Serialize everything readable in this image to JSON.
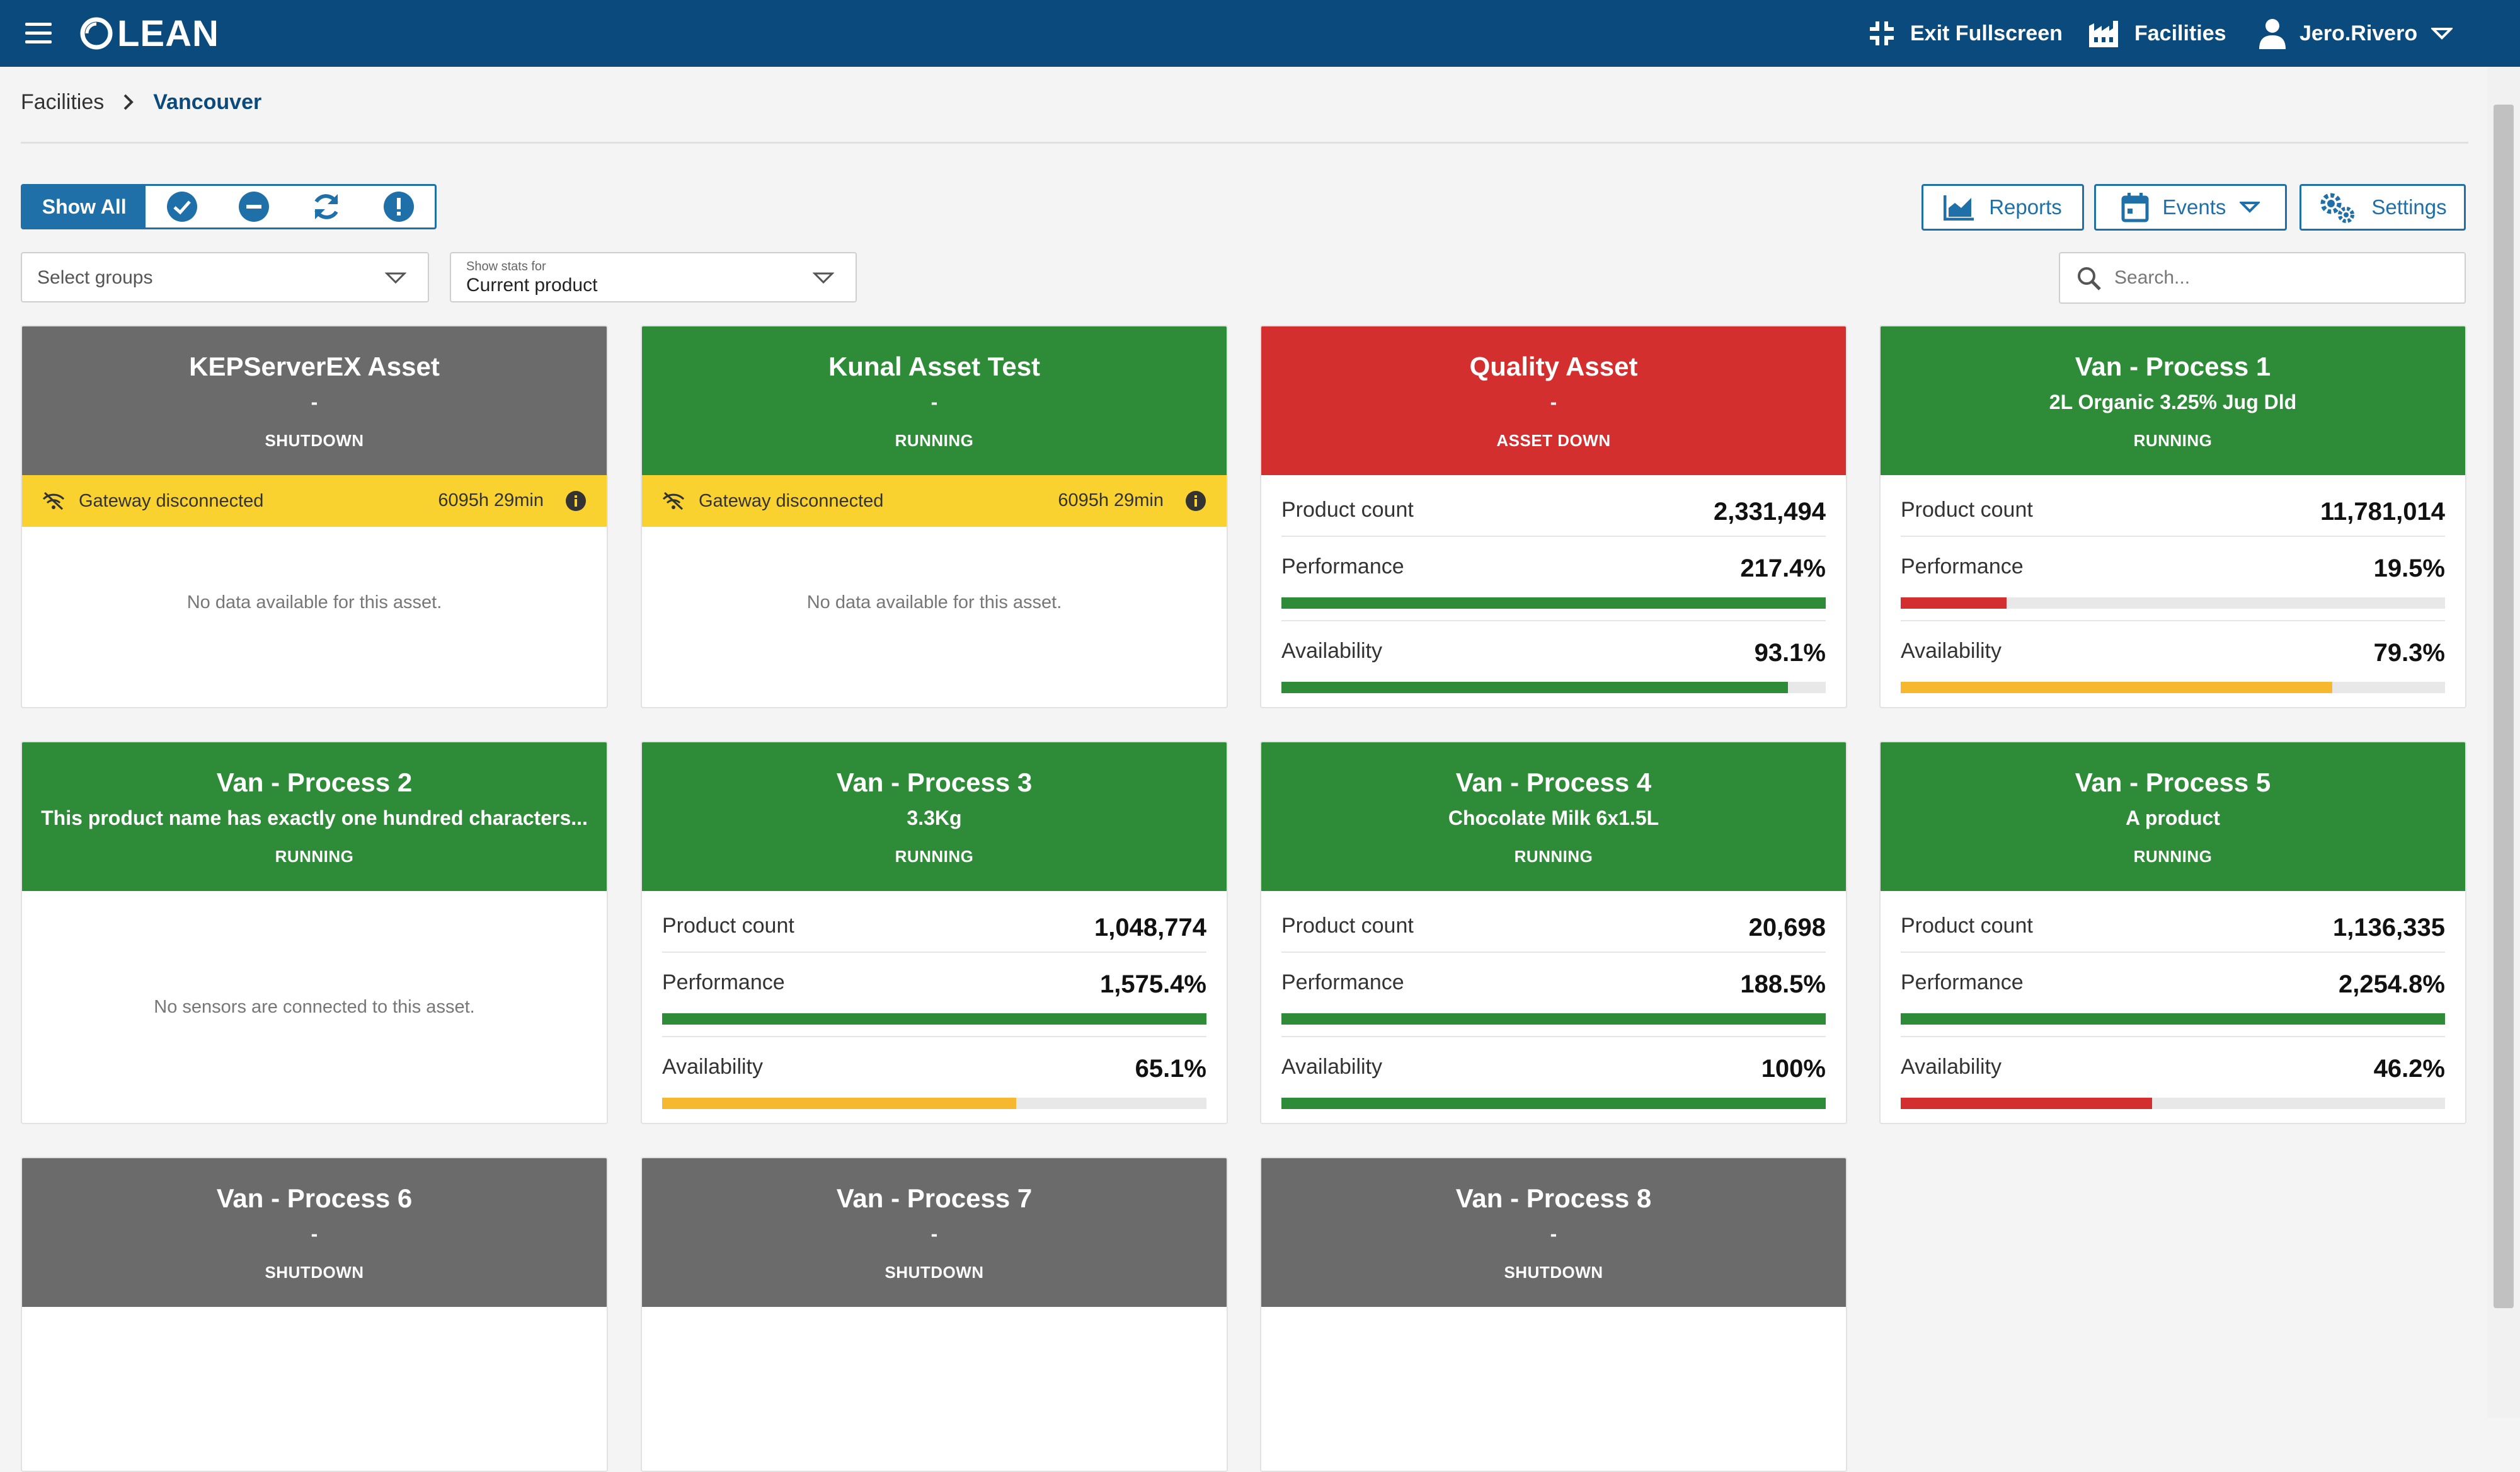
{
  "app": {
    "logo_text": "LEAN",
    "colors": {
      "header": "#0b4a7c",
      "accent": "#1f6fa8",
      "green": "#2e8b38",
      "red": "#d32f2f",
      "gray": "#6b6b6b",
      "yellow": "#f9d22f",
      "orange": "#f5b82e"
    }
  },
  "header": {
    "menu_icon": "hamburger-icon",
    "exit_fullscreen": "Exit Fullscreen",
    "facilities": "Facilities",
    "user": "Jero.Rivero"
  },
  "breadcrumb": {
    "root": "Facilities",
    "current": "Vancouver"
  },
  "toolbar": {
    "show_all": "Show All",
    "filter_icons": [
      "check-circle-icon",
      "minus-circle-icon",
      "refresh-icon",
      "alert-circle-icon"
    ],
    "reports": "Reports",
    "events": "Events",
    "settings": "Settings",
    "groups_placeholder": "Select groups",
    "stats_label": "Show stats for",
    "stats_value": "Current product",
    "search_placeholder": "Search..."
  },
  "labels": {
    "product_count": "Product count",
    "performance": "Performance",
    "availability": "Availability"
  },
  "cards": [
    {
      "title": "KEPServerEX Asset",
      "subtitle": "-",
      "status": "SHUTDOWN",
      "warning": "Gateway disconnected",
      "warning_time": "6095h 29min",
      "message": "No data available for this asset."
    },
    {
      "title": "Kunal Asset Test",
      "subtitle": "-",
      "status": "RUNNING",
      "warning": "Gateway disconnected",
      "warning_time": "6095h 29min",
      "message": "No data available for this asset."
    },
    {
      "title": "Quality Asset",
      "subtitle": "-",
      "status": "ASSET DOWN",
      "product_count": "2,331,494",
      "performance": "217.4%",
      "performance_fill": 100,
      "availability": "93.1%",
      "availability_fill": 93.1
    },
    {
      "title": "Van - Process 1",
      "subtitle": "2L Organic 3.25% Jug Dld",
      "status": "RUNNING",
      "product_count": "11,781,014",
      "performance": "19.5%",
      "performance_fill": 19.5,
      "availability": "79.3%",
      "availability_fill": 79.3
    },
    {
      "title": "Van - Process 2",
      "subtitle": "This product name has exactly one hundred characters...",
      "status": "RUNNING",
      "message": "No sensors are connected to this asset."
    },
    {
      "title": "Van - Process 3",
      "subtitle": "3.3Kg",
      "status": "RUNNING",
      "product_count": "1,048,774",
      "performance": "1,575.4%",
      "performance_fill": 100,
      "availability": "65.1%",
      "availability_fill": 65.1
    },
    {
      "title": "Van - Process 4",
      "subtitle": "Chocolate Milk 6x1.5L",
      "status": "RUNNING",
      "product_count": "20,698",
      "performance": "188.5%",
      "performance_fill": 100,
      "availability": "100%",
      "availability_fill": 100
    },
    {
      "title": "Van - Process 5",
      "subtitle": "A product",
      "status": "RUNNING",
      "product_count": "1,136,335",
      "performance": "2,254.8%",
      "performance_fill": 100,
      "availability": "46.2%",
      "availability_fill": 46.2
    },
    {
      "title": "Van - Process 6",
      "subtitle": "-",
      "status": "SHUTDOWN"
    },
    {
      "title": "Van - Process 7",
      "subtitle": "-",
      "status": "SHUTDOWN"
    },
    {
      "title": "Van - Process 8",
      "subtitle": "-",
      "status": "SHUTDOWN"
    }
  ]
}
